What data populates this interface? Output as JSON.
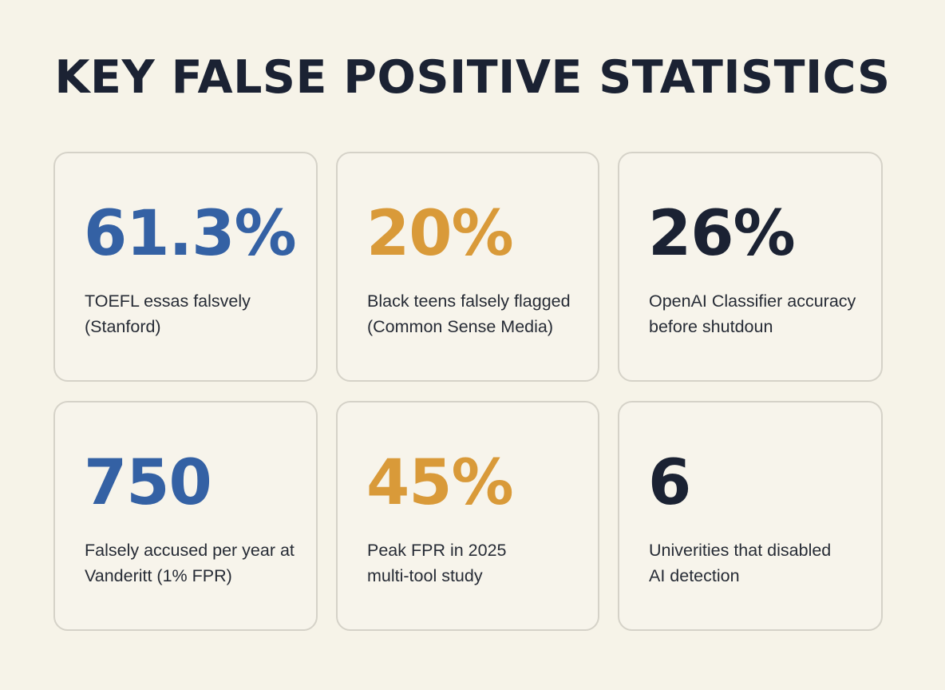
{
  "title": "KEY FALSE POSITIVE STATISTICS",
  "colors": {
    "background": "#f6f3e8",
    "card_border": "#d5d2c8",
    "blue": "#3461a4",
    "gold": "#d99a39",
    "navy": "#1b2233"
  },
  "cards": [
    {
      "value": "61.3%",
      "label": "TOEFL essas falsvely\n(Stanford)",
      "color": "#3461a4"
    },
    {
      "value": "20%",
      "label": "Black teens falsely flagged\n(Common Sense Media)",
      "color": "#d99a39"
    },
    {
      "value": "26%",
      "label": "OpenAI Classifier accuracy\nbefore shutdoun",
      "color": "#1b2233"
    },
    {
      "value": "750",
      "label": "Falsely accused per year at\nVanderitt (1% FPR)",
      "color": "#3461a4"
    },
    {
      "value": "45%",
      "label": "Peak FPR in 2025\nmulti-tool study",
      "color": "#d99a39"
    },
    {
      "value": "6",
      "label": "Univerities that disabled\nAI detection",
      "color": "#1b2233"
    }
  ]
}
